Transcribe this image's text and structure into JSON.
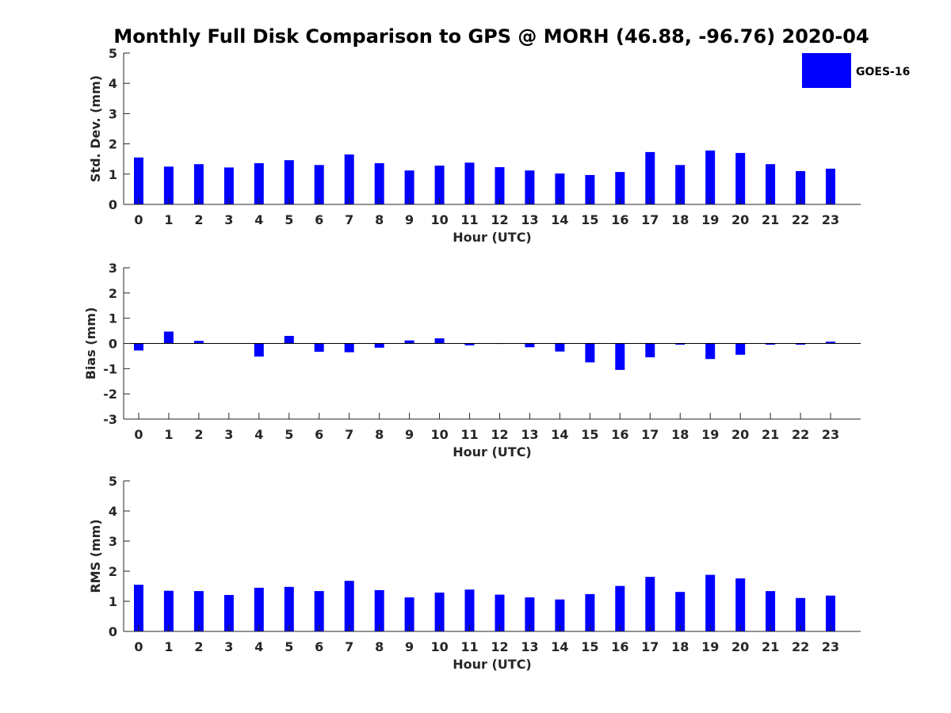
{
  "title": "Monthly Full Disk Comparison to GPS @ MORH (46.88, -96.76) 2020-04",
  "legend": {
    "label": "GOES-16",
    "color": "#0000ff"
  },
  "chart_data": [
    {
      "type": "bar",
      "ylabel": "Std. Dev. (mm)",
      "xlabel": "Hour (UTC)",
      "ylim": [
        0,
        5
      ],
      "yticks": [
        0,
        1,
        2,
        3,
        4,
        5
      ],
      "categories": [
        "0",
        "1",
        "2",
        "3",
        "4",
        "5",
        "6",
        "7",
        "8",
        "9",
        "10",
        "11",
        "12",
        "13",
        "14",
        "15",
        "16",
        "17",
        "18",
        "19",
        "20",
        "21",
        "22",
        "23"
      ],
      "series": [
        {
          "name": "GOES-16",
          "values": [
            1.55,
            1.25,
            1.33,
            1.22,
            1.36,
            1.46,
            1.3,
            1.65,
            1.36,
            1.12,
            1.28,
            1.38,
            1.23,
            1.12,
            1.02,
            0.97,
            1.07,
            1.73,
            1.3,
            1.78,
            1.7,
            1.33,
            1.1,
            1.18
          ]
        }
      ],
      "grid": false,
      "legend_position": "top-right"
    },
    {
      "type": "bar",
      "ylabel": "Bias (mm)",
      "xlabel": "Hour (UTC)",
      "ylim": [
        -3,
        3
      ],
      "yticks": [
        -3,
        -2,
        -1,
        0,
        1,
        2,
        3
      ],
      "categories": [
        "0",
        "1",
        "2",
        "3",
        "4",
        "5",
        "6",
        "7",
        "8",
        "9",
        "10",
        "11",
        "12",
        "13",
        "14",
        "15",
        "16",
        "17",
        "18",
        "19",
        "20",
        "21",
        "22",
        "23"
      ],
      "series": [
        {
          "name": "GOES-16",
          "values": [
            -0.28,
            0.47,
            0.1,
            0.0,
            -0.52,
            0.3,
            -0.33,
            -0.35,
            -0.17,
            0.12,
            0.2,
            -0.08,
            -0.02,
            -0.15,
            -0.32,
            -0.75,
            -1.05,
            -0.55,
            -0.05,
            -0.62,
            -0.45,
            -0.05,
            -0.05,
            0.07
          ]
        }
      ],
      "grid": false
    },
    {
      "type": "bar",
      "ylabel": "RMS (mm)",
      "xlabel": "Hour (UTC)",
      "ylim": [
        0,
        5
      ],
      "yticks": [
        0,
        1,
        2,
        3,
        4,
        5
      ],
      "categories": [
        "0",
        "1",
        "2",
        "3",
        "4",
        "5",
        "6",
        "7",
        "8",
        "9",
        "10",
        "11",
        "12",
        "13",
        "14",
        "15",
        "16",
        "17",
        "18",
        "19",
        "20",
        "21",
        "22",
        "23"
      ],
      "series": [
        {
          "name": "GOES-16",
          "values": [
            1.55,
            1.35,
            1.34,
            1.21,
            1.45,
            1.48,
            1.34,
            1.68,
            1.37,
            1.13,
            1.29,
            1.39,
            1.22,
            1.13,
            1.06,
            1.24,
            1.51,
            1.81,
            1.31,
            1.88,
            1.76,
            1.34,
            1.11,
            1.19
          ]
        }
      ],
      "grid": false
    }
  ]
}
